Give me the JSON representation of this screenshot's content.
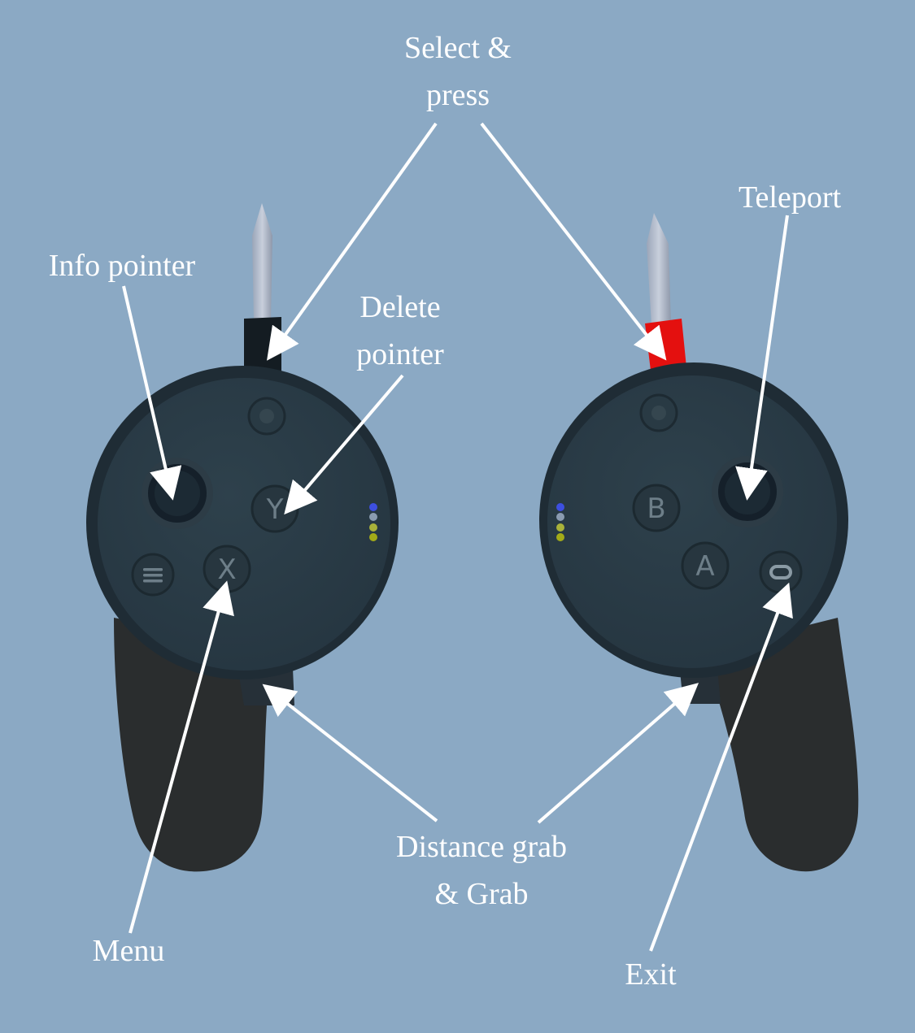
{
  "labels": {
    "select_press": "Select &\npress",
    "teleport": "Teleport",
    "info_pointer": "Info pointer",
    "delete_pointer": "Delete\npointer",
    "distance_grab": "Distance grab\n& Grab",
    "menu": "Menu",
    "exit": "Exit"
  },
  "buttons": {
    "y": "Y",
    "x": "X",
    "b": "B",
    "a": "A"
  },
  "colors": {
    "background": "#8ba9c4",
    "controller_body": "#2a3a44",
    "right_pointer_sleeve": "#e4100f",
    "left_pointer_sleeve": "#141c22",
    "label_text": "#ffffff",
    "arrow": "#ffffff"
  },
  "icons": {
    "left_controller": "vr-controller-left",
    "right_controller": "vr-controller-right",
    "menu_button": "hamburger-icon",
    "oculus_button": "oculus-icon"
  }
}
